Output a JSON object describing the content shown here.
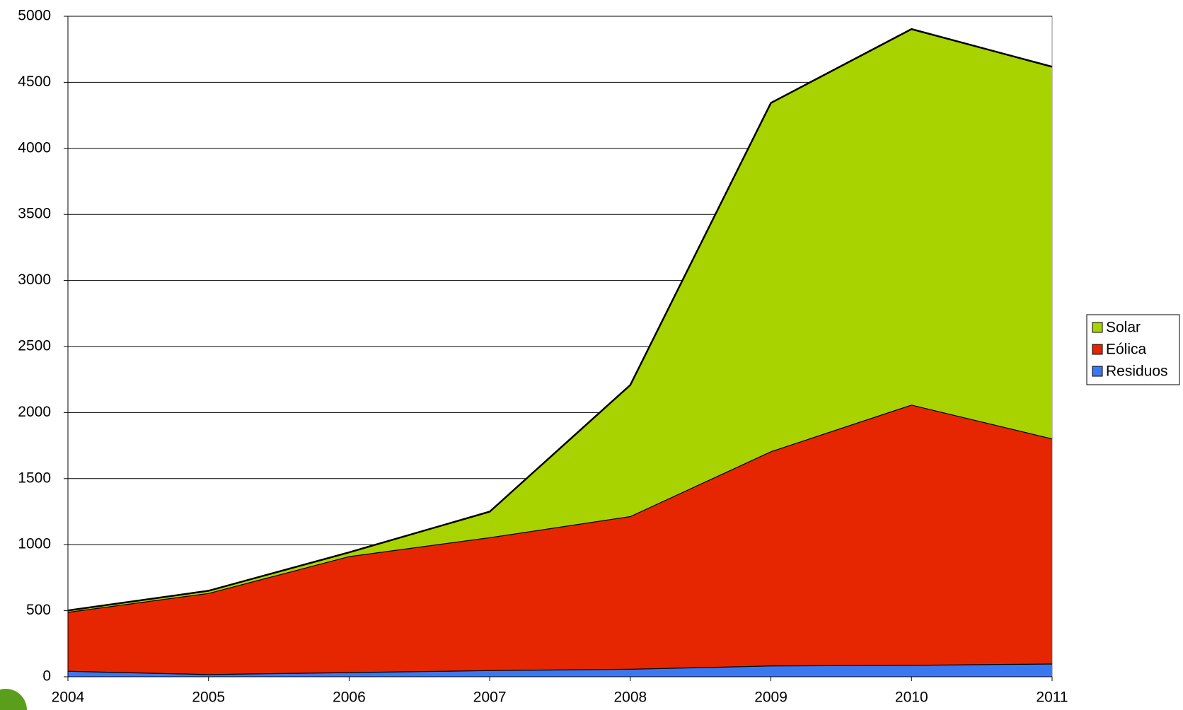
{
  "chart_data": {
    "type": "area",
    "stacked": true,
    "x": [
      2004,
      2005,
      2006,
      2007,
      2008,
      2009,
      2010,
      2011
    ],
    "series": [
      {
        "name": "Residuos",
        "color": "#3a78f2",
        "values": [
          45,
          20,
          35,
          50,
          60,
          85,
          90,
          100
        ]
      },
      {
        "name": "Eólica",
        "color": "#e52600",
        "values": [
          446,
          614,
          878,
          1006,
          1156,
          1622,
          1970,
          1704
        ]
      },
      {
        "name": "Solar",
        "color": "#a8d300",
        "values": [
          11,
          17,
          29,
          194,
          993,
          2637,
          2843,
          2814
        ]
      }
    ],
    "xlim": [
      2004,
      2011
    ],
    "xticks": [
      2004,
      2005,
      2006,
      2007,
      2008,
      2009,
      2010,
      2011
    ],
    "ylim": [
      0,
      5000
    ],
    "yticks": [
      0,
      500,
      1000,
      1500,
      2000,
      2500,
      3000,
      3500,
      4000,
      4500,
      5000
    ],
    "grid": true,
    "legend": "right"
  }
}
